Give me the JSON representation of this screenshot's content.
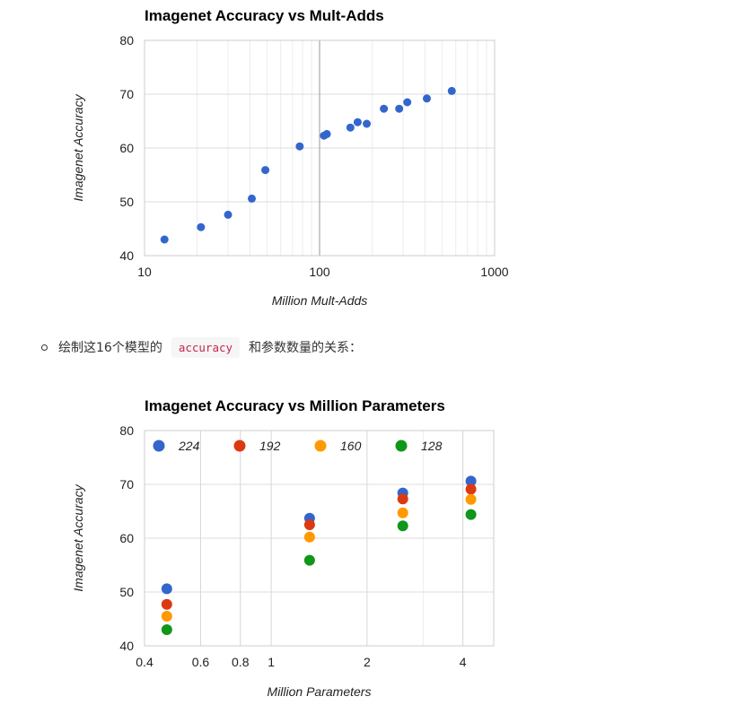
{
  "bullet": {
    "before": "绘制这16个模型的",
    "code": "accuracy",
    "after": "和参数数量的关系："
  },
  "colors": {
    "c224": "#3366cc",
    "c192": "#dc3912",
    "c160": "#ff9900",
    "c128": "#109618"
  },
  "chart_data": [
    {
      "type": "scatter",
      "title": "Imagenet Accuracy vs Mult-Adds",
      "xlabel": "Million Mult-Adds",
      "ylabel": "Imagenet Accuracy",
      "xscale": "log",
      "xlim": [
        10,
        1000
      ],
      "ylim": [
        40,
        80
      ],
      "xticks": [
        "10",
        "100",
        "1000"
      ],
      "yticks": [
        "40",
        "50",
        "60",
        "70",
        "80"
      ],
      "grid": true,
      "legend": "none",
      "series": [
        {
          "color": "#3366cc",
          "points": [
            [
              13,
              43.0
            ],
            [
              21,
              45.3
            ],
            [
              30,
              47.6
            ],
            [
              41,
              50.6
            ],
            [
              49,
              55.9
            ],
            [
              77,
              60.3
            ],
            [
              106,
              62.3
            ],
            [
              110,
              62.6
            ],
            [
              150,
              63.8
            ],
            [
              165,
              64.8
            ],
            [
              186,
              64.5
            ],
            [
              233,
              67.3
            ],
            [
              285,
              67.3
            ],
            [
              317,
              68.5
            ],
            [
              410,
              69.2
            ],
            [
              569,
              70.6
            ]
          ]
        }
      ]
    },
    {
      "type": "scatter",
      "title": "Imagenet Accuracy vs Million Parameters",
      "xlabel": "Million Parameters",
      "ylabel": "Imagenet Accuracy",
      "xscale": "log",
      "xlim": [
        0.4,
        5
      ],
      "ylim": [
        40,
        80
      ],
      "xticks": [
        "0.4",
        "0.6",
        "0.8",
        "1",
        "2",
        "4"
      ],
      "yticks": [
        "40",
        "50",
        "60",
        "70",
        "80"
      ],
      "grid": true,
      "legend": "top",
      "x": [
        0.47,
        1.32,
        2.59,
        4.24
      ],
      "series": [
        {
          "name": "224",
          "color": "#3366cc",
          "values": [
            50.6,
            63.7,
            68.4,
            70.6
          ]
        },
        {
          "name": "192",
          "color": "#dc3912",
          "values": [
            47.7,
            62.5,
            67.3,
            69.1
          ]
        },
        {
          "name": "160",
          "color": "#ff9900",
          "values": [
            45.5,
            60.2,
            64.7,
            67.2
          ]
        },
        {
          "name": "128",
          "color": "#109618",
          "values": [
            43.0,
            55.9,
            62.3,
            64.4
          ]
        }
      ]
    }
  ]
}
